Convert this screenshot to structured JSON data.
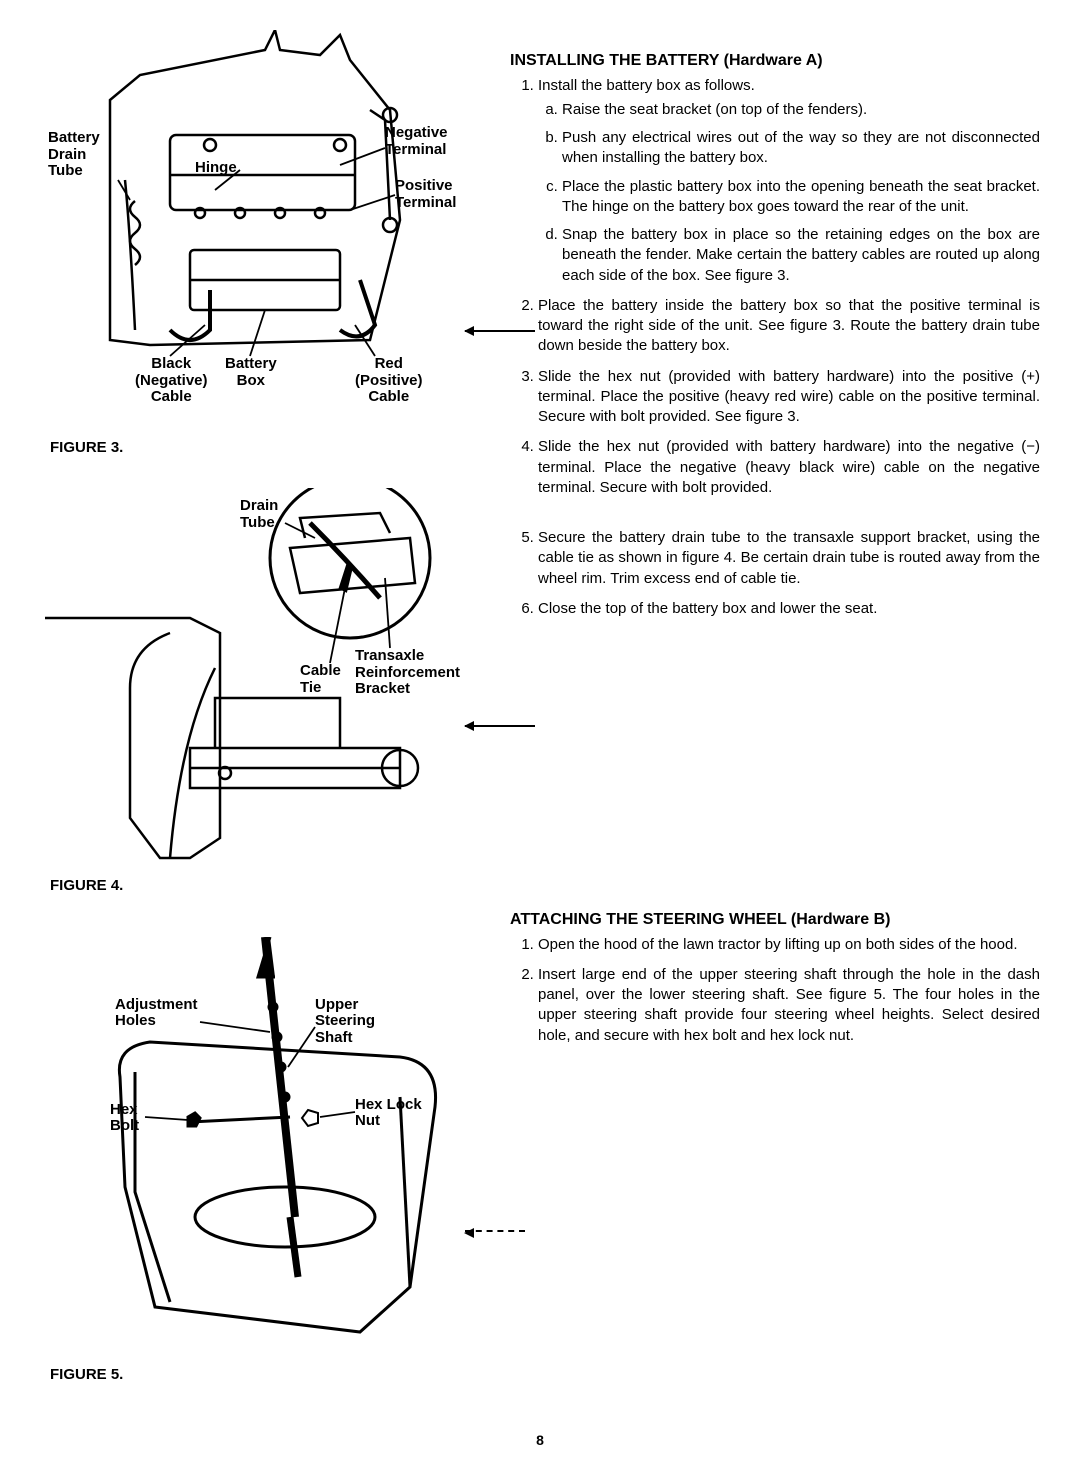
{
  "page_number": "8",
  "figures": {
    "fig3": {
      "caption": "FIGURE 3.",
      "labels": {
        "battery_drain_tube": "Battery\nDrain\nTube",
        "hinge": "Hinge",
        "negative_terminal": "Negative\nTerminal",
        "positive_terminal": "Positive\nTerminal",
        "black_negative_cable": "Black\n(Negative)\nCable",
        "battery_box": "Battery\nBox",
        "red_positive_cable": "Red\n(Positive)\nCable"
      }
    },
    "fig4": {
      "caption": "FIGURE 4.",
      "labels": {
        "drain_tube": "Drain\nTube",
        "cable_tie": "Cable\nTie",
        "transaxle_bracket": "Transaxle\nReinforcement\nBracket"
      }
    },
    "fig5": {
      "caption": "FIGURE 5.",
      "labels": {
        "adjustment_holes": "Adjustment\nHoles",
        "upper_steering_shaft": "Upper\nSteering\nShaft",
        "hex_bolt": "Hex\nBolt",
        "hex_lock_nut": "Hex Lock\nNut"
      }
    }
  },
  "sections": {
    "battery": {
      "heading": "INSTALLING THE BATTERY",
      "hardware": "(Hardware A)",
      "items": [
        {
          "text": "Install the battery box as follows.",
          "subitems": [
            "Raise the seat bracket (on top of the fenders).",
            "Push any electrical wires out of the way so they are not disconnected when installing the battery box.",
            "Place the plastic battery box into the opening beneath the seat bracket. The hinge on the battery box goes toward the rear of the unit.",
            "Snap the battery box in place so the retaining edges on the box are beneath the fender. Make certain the battery cables are routed up along each side of the box. See figure 3."
          ]
        },
        {
          "text": "Place the battery inside the battery box so that the positive terminal is toward the right side of the unit. See figure 3. Route the battery drain tube down beside the battery box."
        },
        {
          "text": "Slide the hex nut (provided with battery hardware) into the positive (+) terminal. Place the positive (heavy red wire) cable on the positive terminal. Secure with bolt provided. See figure 3."
        },
        {
          "text": "Slide the hex nut (provided with battery hardware) into the negative (−) terminal. Place the negative (heavy black wire) cable on the negative terminal. Secure with bolt provided."
        },
        {
          "text": "Secure the battery drain tube to the transaxle support bracket, using the cable tie as shown in figure 4. Be certain drain tube is routed away from the wheel rim. Trim excess end of cable tie."
        },
        {
          "text": "Close the top of the battery box and lower the seat."
        }
      ]
    },
    "steering": {
      "heading": "ATTACHING THE STEERING WHEEL",
      "hardware": "(Hardware B)",
      "items": [
        {
          "text": "Open the hood of the lawn tractor by lifting up on both sides of the hood."
        },
        {
          "text": "Insert large end of the upper steering shaft through the hole in the dash panel, over the lower steering shaft. See figure 5. The four holes in the upper steering shaft provide four steering wheel heights. Select desired hole, and secure with hex bolt and hex lock nut."
        }
      ]
    }
  }
}
